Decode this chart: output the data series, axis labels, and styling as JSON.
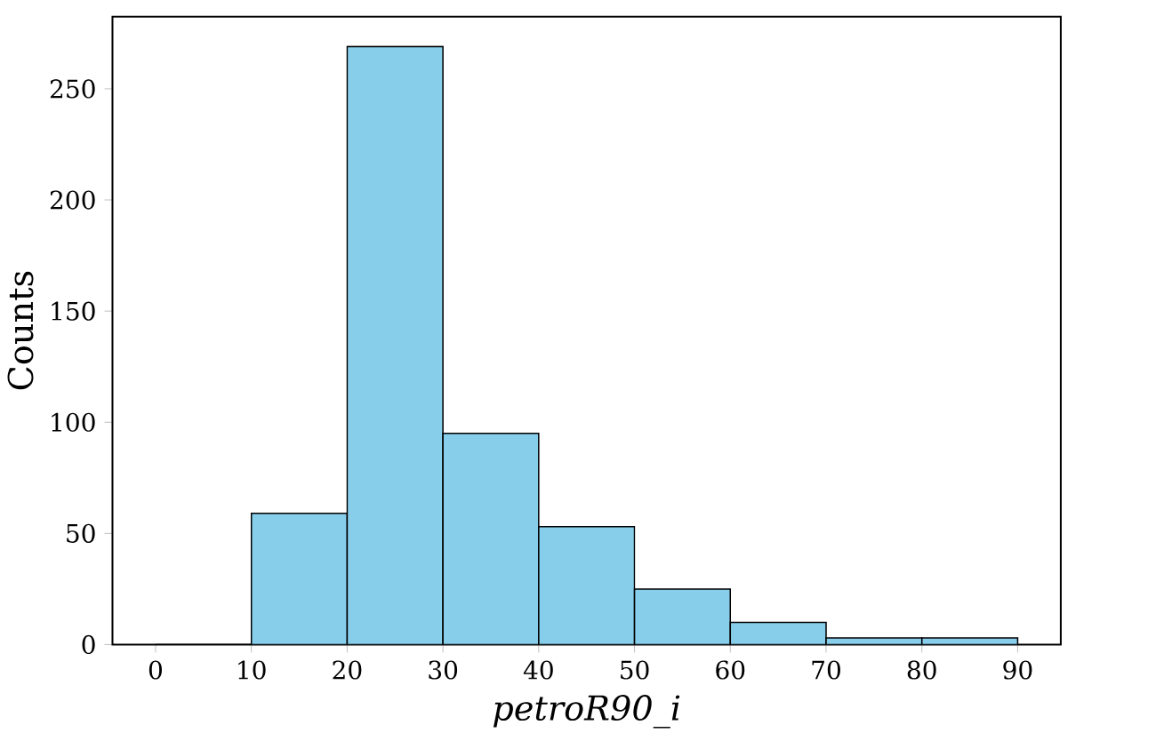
{
  "chart_data": {
    "type": "histogram",
    "xlabel": "*petroR90_i*",
    "ylabel": "Counts",
    "bins": [
      0,
      10,
      20,
      30,
      40,
      50,
      60,
      70,
      80,
      90
    ],
    "values": [
      0,
      59,
      269,
      95,
      53,
      25,
      10,
      3,
      3
    ],
    "color": "#87ceeb",
    "xlim": [
      -4.5,
      94.5
    ],
    "ylim": [
      0,
      282.45
    ],
    "xticks": [
      0,
      10,
      20,
      30,
      40,
      50,
      60,
      70,
      80,
      90
    ],
    "yticks": [
      0,
      50,
      100,
      150,
      200,
      250
    ],
    "grid": false
  }
}
